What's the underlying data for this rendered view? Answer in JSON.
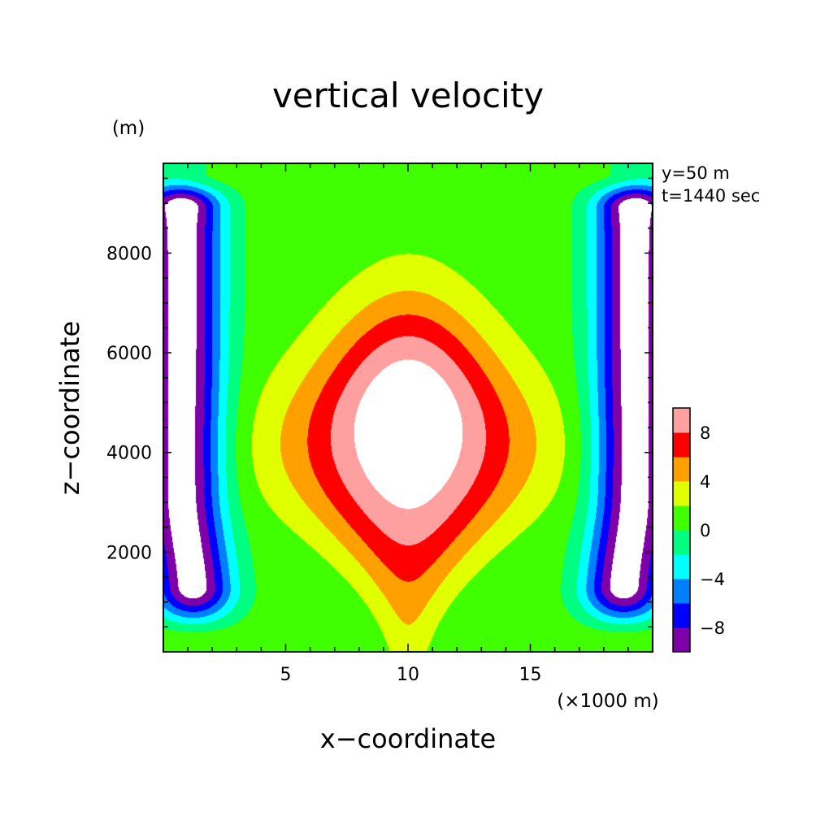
{
  "chart_data": {
    "type": "heatmap",
    "title": "vertical velocity",
    "xlabel": "x−coordinate",
    "ylabel": "z−coordinate",
    "x_unit": "(×1000 m)",
    "y_unit": "(m)",
    "info": [
      "y=50 m",
      "t=1440 sec"
    ],
    "xlim": [
      0,
      20
    ],
    "ylim": [
      0,
      9800
    ],
    "x_ticks": [
      {
        "value": 5,
        "label": "5"
      },
      {
        "value": 10,
        "label": "10"
      },
      {
        "value": 15,
        "label": "15"
      }
    ],
    "y_ticks": [
      {
        "value": 2000,
        "label": "2000"
      },
      {
        "value": 4000,
        "label": "4000"
      },
      {
        "value": 6000,
        "label": "6000"
      },
      {
        "value": 8000,
        "label": "8000"
      }
    ],
    "colorbar": {
      "levels": [
        -10,
        -8,
        -6,
        -4,
        -2,
        0,
        2,
        4,
        6,
        8,
        10
      ],
      "colors": [
        "#7f00a8",
        "#0000ff",
        "#0080ff",
        "#00ffff",
        "#00ff80",
        "#40ff00",
        "#e0ff00",
        "#ffa000",
        "#ff0000",
        "#ffa0a0"
      ],
      "tick_labels": [
        {
          "value": 8,
          "label": "8"
        },
        {
          "value": 4,
          "label": "4"
        },
        {
          "value": 0,
          "label": "0"
        },
        {
          "value": -4,
          "label": "−4"
        },
        {
          "value": -8,
          "label": "−8"
        }
      ]
    },
    "field": {
      "description": "w(x,z) symmetric about x=10; updraft core >10 m/s centered x=10, z~4500; downdrafts <-10 m/s near x<1.5 and x>18.5 below z~9000",
      "background_value": 1.0,
      "out_of_range_color": "#ffffff"
    }
  }
}
